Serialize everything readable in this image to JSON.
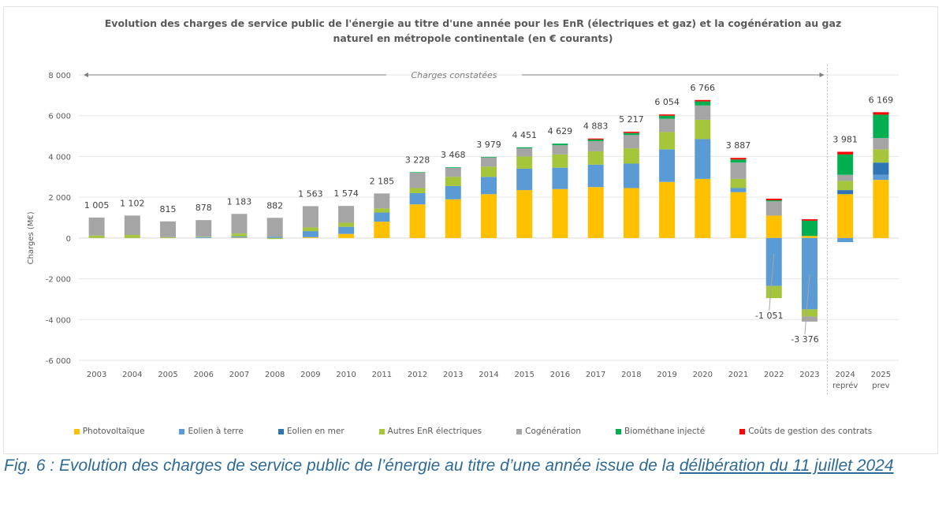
{
  "chart_data": {
    "type": "bar",
    "stacked": true,
    "title": "Evolution des charges de service public de l'énergie au titre d'une année pour les EnR (électriques et gaz) et la cogénération au gaz naturel en métropole continentale (en € courants)",
    "title_lines": [
      "Evolution des charges de service public de l'énergie au titre d'une année pour les EnR (électriques et gaz) et la cogénération au gaz",
      "naturel en métropole continentale (en € courants)"
    ],
    "xlabel": "",
    "ylabel": "Charges (M€)",
    "ylim": [
      -6000,
      8000
    ],
    "yticks": [
      8000,
      6000,
      4000,
      2000,
      0,
      -2000,
      -4000,
      -6000
    ],
    "ytick_labels": [
      "8 000",
      "6 000",
      "4 000",
      "2 000",
      "0",
      "-2 000",
      "-4 000",
      "-6 000"
    ],
    "grid": true,
    "legend_position": "bottom",
    "annotation": "Charges constatées",
    "categories": [
      "2003",
      "2004",
      "2005",
      "2006",
      "2007",
      "2008",
      "2009",
      "2010",
      "2011",
      "2012",
      "2013",
      "2014",
      "2015",
      "2016",
      "2017",
      "2018",
      "2019",
      "2020",
      "2021",
      "2022",
      "2023",
      "2024",
      "2025"
    ],
    "category_sublabels": [
      "",
      "",
      "",
      "",
      "",
      "",
      "",
      "",
      "",
      "",
      "",
      "",
      "",
      "",
      "",
      "",
      "",
      "",
      "",
      "",
      "",
      "reprév",
      "prev"
    ],
    "totals": [
      1005,
      1102,
      815,
      878,
      1183,
      882,
      1563,
      1574,
      2185,
      3228,
      3468,
      3979,
      4451,
      4629,
      4883,
      5217,
      6054,
      6766,
      3887,
      -1051,
      -3376,
      3981,
      6169
    ],
    "total_labels": [
      "1 005",
      "1 102",
      "815",
      "878",
      "1 183",
      "882",
      "1 563",
      "1 574",
      "2 185",
      "3 228",
      "3 468",
      "3 979",
      "4 451",
      "4 629",
      "4 883",
      "5 217",
      "6 054",
      "6 766",
      "3 887",
      "-1 051",
      "-3 376",
      "3 981",
      "6 169"
    ],
    "series": [
      {
        "name": "Photovoltaïque",
        "color": "#ffc000",
        "values": [
          0,
          0,
          0,
          0,
          20,
          0,
          40,
          200,
          800,
          1650,
          1900,
          2150,
          2350,
          2400,
          2500,
          2450,
          2750,
          2900,
          2250,
          1100,
          100,
          2150,
          2850
        ]
      },
      {
        "name": "Eolien à terre",
        "color": "#5b9bd5",
        "values": [
          0,
          0,
          0,
          40,
          60,
          60,
          300,
          350,
          450,
          550,
          650,
          850,
          1050,
          1050,
          1100,
          1200,
          1600,
          1950,
          200,
          -2350,
          -3500,
          -200,
          250
        ]
      },
      {
        "name": "Eolien en mer",
        "color": "#2e75b6",
        "values": [
          0,
          0,
          0,
          0,
          0,
          0,
          0,
          0,
          0,
          0,
          0,
          0,
          0,
          0,
          0,
          0,
          0,
          0,
          0,
          0,
          0,
          200,
          600
        ]
      },
      {
        "name": "Autres EnR électriques",
        "color": "#a5c63b",
        "values": [
          120,
          150,
          40,
          20,
          140,
          -50,
          180,
          200,
          200,
          250,
          450,
          500,
          600,
          650,
          650,
          750,
          850,
          950,
          450,
          -600,
          -350,
          450,
          650
        ]
      },
      {
        "name": "Cogénération",
        "color": "#a5a5a5",
        "values": [
          885,
          952,
          775,
          818,
          963,
          930,
          1043,
          824,
          735,
          750,
          440,
          450,
          400,
          450,
          500,
          650,
          650,
          700,
          800,
          700,
          -250,
          300,
          550
        ]
      },
      {
        "name": "Biométhane injecté",
        "color": "#00b050",
        "values": [
          0,
          0,
          0,
          0,
          0,
          0,
          0,
          0,
          0,
          30,
          30,
          30,
          50,
          80,
          80,
          100,
          150,
          200,
          150,
          50,
          750,
          1000,
          1150
        ]
      },
      {
        "name": "Coûts de gestion des contrats",
        "color": "#ff0000",
        "values": [
          0,
          0,
          0,
          0,
          0,
          0,
          0,
          0,
          0,
          0,
          0,
          0,
          0,
          0,
          50,
          60,
          60,
          70,
          80,
          80,
          70,
          130,
          120
        ]
      }
    ]
  },
  "caption": {
    "text": "Fig. 6 : Evolution des charges de service public de l’énergie au titre d’une année issue de la ",
    "link_text": "délibération du 11 juillet 2024"
  }
}
